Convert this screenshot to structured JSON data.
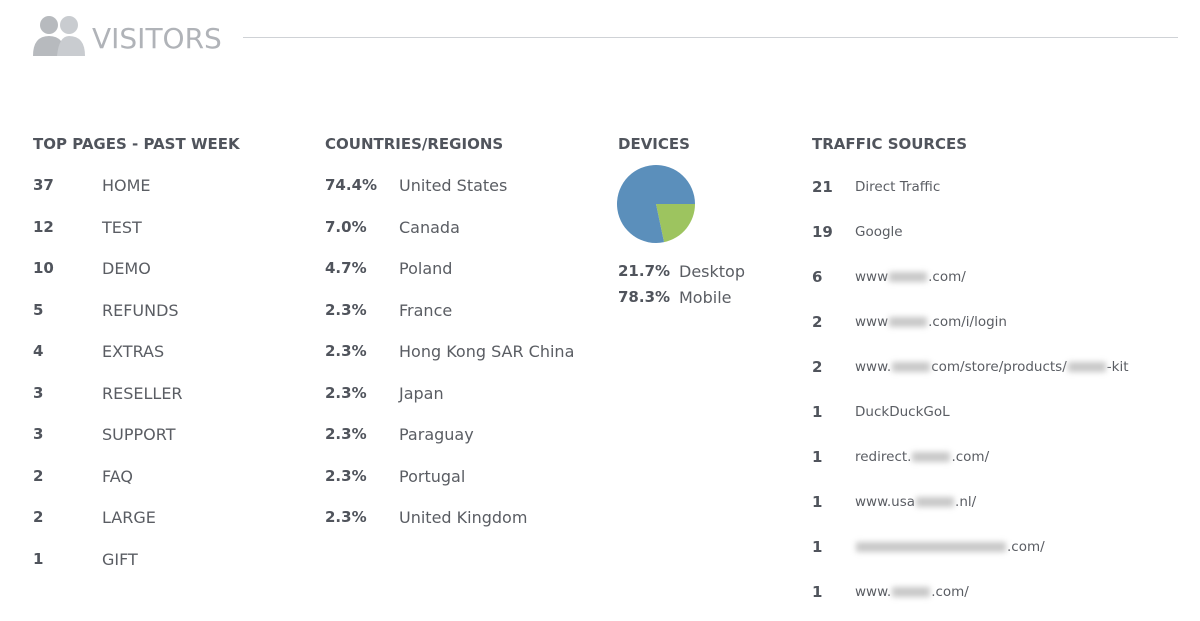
{
  "header": {
    "title": "VISITORS"
  },
  "top_pages": {
    "title": "TOP PAGES - PAST WEEK",
    "rows": [
      [
        37,
        "HOME"
      ],
      [
        12,
        "TEST"
      ],
      [
        10,
        "DEMO"
      ],
      [
        5,
        "REFUNDS"
      ],
      [
        4,
        "EXTRAS"
      ],
      [
        3,
        "RESELLER"
      ],
      [
        3,
        "SUPPORT"
      ],
      [
        2,
        "FAQ"
      ],
      [
        2,
        "LARGE"
      ],
      [
        1,
        "GIFT"
      ]
    ]
  },
  "countries": {
    "title": "COUNTRIES/REGIONS",
    "rows": [
      [
        "74.4%",
        "United States"
      ],
      [
        "7.0%",
        "Canada"
      ],
      [
        "4.7%",
        "Poland"
      ],
      [
        "2.3%",
        "France"
      ],
      [
        "2.3%",
        "Hong Kong SAR China"
      ],
      [
        "2.3%",
        "Japan"
      ],
      [
        "2.3%",
        "Paraguay"
      ],
      [
        "2.3%",
        "Portugal"
      ],
      [
        "2.3%",
        "United Kingdom"
      ]
    ]
  },
  "chart_data": {
    "type": "pie",
    "title": "DEVICES",
    "categories": [
      "Desktop",
      "Mobile"
    ],
    "values": [
      21.7,
      78.3
    ],
    "value_labels": [
      "21.7%",
      "78.3%"
    ],
    "colors": [
      "#9dc45f",
      "#5b8fbb"
    ]
  },
  "traffic_sources": {
    "title": "TRAFFIC SOURCES",
    "rows": [
      {
        "count": 21,
        "parts": [
          "Direct Traffic"
        ]
      },
      {
        "count": 19,
        "parts": [
          "Google"
        ]
      },
      {
        "count": 6,
        "parts": [
          "www",
          ".com/"
        ]
      },
      {
        "count": 2,
        "parts": [
          "www",
          ".com/i/login"
        ]
      },
      {
        "count": 2,
        "parts": [
          "www.",
          "com/store/products/",
          "-kit"
        ]
      },
      {
        "count": 1,
        "parts": [
          "DuckDuckGoL"
        ]
      },
      {
        "count": 1,
        "parts": [
          "redirect.",
          ".com/"
        ]
      },
      {
        "count": 1,
        "parts": [
          "www.usa",
          ".nl/"
        ]
      },
      {
        "count": 1,
        "parts": [
          ".com/"
        ],
        "blurred_start": true
      },
      {
        "count": 1,
        "parts": [
          "www.",
          ".com/"
        ]
      }
    ]
  }
}
